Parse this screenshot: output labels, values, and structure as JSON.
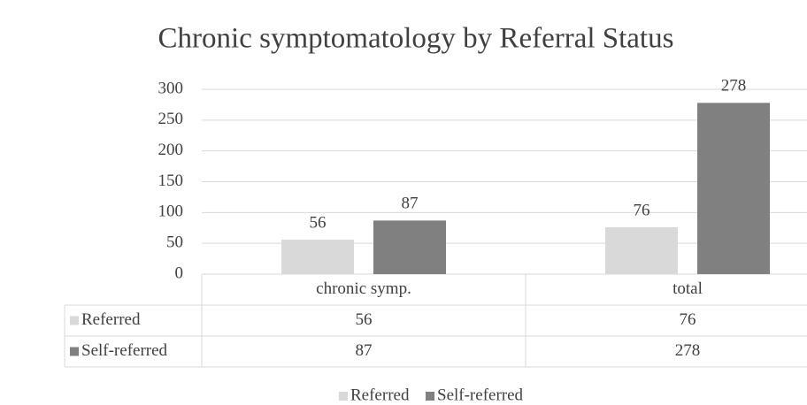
{
  "chart_data": {
    "type": "bar",
    "title": "Chronic symptomatology by Referral Status",
    "categories": [
      "chronic symp.",
      "total"
    ],
    "series": [
      {
        "name": "Referred",
        "color": "#d9d9d9",
        "values": [
          56,
          76
        ]
      },
      {
        "name": "Self-referred",
        "color": "#808080",
        "values": [
          87,
          278
        ]
      }
    ],
    "ylim": [
      0,
      300
    ],
    "yticks": [
      0,
      50,
      100,
      150,
      200,
      250,
      300
    ],
    "grid": true,
    "legend": "bottom",
    "data_table": true
  }
}
